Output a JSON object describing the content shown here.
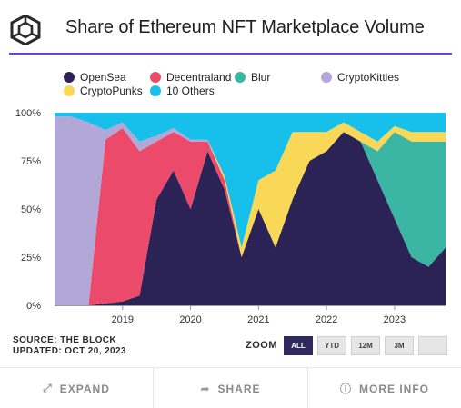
{
  "header": {
    "title": "Share of Ethereum NFT Marketplace Volume"
  },
  "chart_data": {
    "type": "area",
    "stacked": "percent",
    "x_tick_labels": [
      "2019",
      "2020",
      "2021",
      "2022",
      "2023"
    ],
    "y_tick_labels": [
      "0%",
      "25%",
      "50%",
      "75%",
      "100%"
    ],
    "ylim": [
      0,
      100
    ],
    "legend_position": "top",
    "legend": [
      "OpenSea",
      "Decentraland",
      "Blur",
      "CryptoKitties",
      "CryptoPunks",
      "10 Others"
    ],
    "x": [
      "2018-01",
      "2018-04",
      "2018-07",
      "2018-10",
      "2019-01",
      "2019-04",
      "2019-07",
      "2019-10",
      "2020-01",
      "2020-04",
      "2020-07",
      "2020-10",
      "2021-01",
      "2021-04",
      "2021-07",
      "2021-10",
      "2022-01",
      "2022-04",
      "2022-07",
      "2022-10",
      "2023-01",
      "2023-04",
      "2023-07",
      "2023-10"
    ],
    "series": [
      {
        "name": "OpenSea",
        "color": "#2b2356",
        "values": [
          0,
          0,
          0,
          1,
          2,
          5,
          55,
          70,
          50,
          80,
          60,
          25,
          50,
          30,
          55,
          75,
          80,
          90,
          85,
          65,
          45,
          25,
          20,
          30
        ]
      },
      {
        "name": "Decentraland",
        "color": "#ec4a6b",
        "values": [
          0,
          0,
          0,
          85,
          90,
          75,
          30,
          20,
          35,
          5,
          5,
          0,
          0,
          0,
          0,
          0,
          0,
          0,
          0,
          0,
          0,
          0,
          0,
          0
        ]
      },
      {
        "name": "Blur",
        "color": "#3bb5a4",
        "values": [
          0,
          0,
          0,
          0,
          0,
          0,
          0,
          0,
          0,
          0,
          0,
          0,
          0,
          0,
          0,
          0,
          0,
          0,
          0,
          15,
          45,
          60,
          65,
          55
        ]
      },
      {
        "name": "CryptoKitties",
        "color": "#b1a8d8",
        "values": [
          98,
          98,
          95,
          5,
          3,
          5,
          3,
          2,
          1,
          1,
          0,
          0,
          0,
          0,
          0,
          0,
          0,
          0,
          0,
          0,
          0,
          0,
          0,
          0
        ]
      },
      {
        "name": "CryptoPunks",
        "color": "#fad857",
        "values": [
          0,
          0,
          0,
          0,
          0,
          0,
          0,
          0,
          0,
          0,
          2,
          5,
          15,
          40,
          35,
          15,
          10,
          5,
          5,
          5,
          3,
          5,
          5,
          5
        ]
      },
      {
        "name": "10 Others",
        "color": "#16c0ea",
        "values": [
          2,
          2,
          5,
          9,
          5,
          15,
          12,
          8,
          14,
          14,
          33,
          70,
          35,
          30,
          10,
          10,
          10,
          5,
          10,
          15,
          7,
          10,
          10,
          10
        ]
      }
    ]
  },
  "source": {
    "line1": "SOURCE: THE BLOCK",
    "line2": "UPDATED: OCT 20, 2023"
  },
  "zoom": {
    "label": "ZOOM",
    "buttons": [
      "ALL",
      "YTD",
      "12M",
      "3M",
      ""
    ],
    "active_index": 0
  },
  "footer": {
    "expand": "EXPAND",
    "share": "SHARE",
    "more_info": "MORE INFO"
  },
  "icons": {
    "logo": "cube-logo-icon",
    "expand": "expand-arrows-icon",
    "share": "share-arrow-icon",
    "info": "info-circle-icon"
  },
  "colors": {
    "accent_rule": "#6f3fd1",
    "zoom_active": "#2e2a5e"
  }
}
